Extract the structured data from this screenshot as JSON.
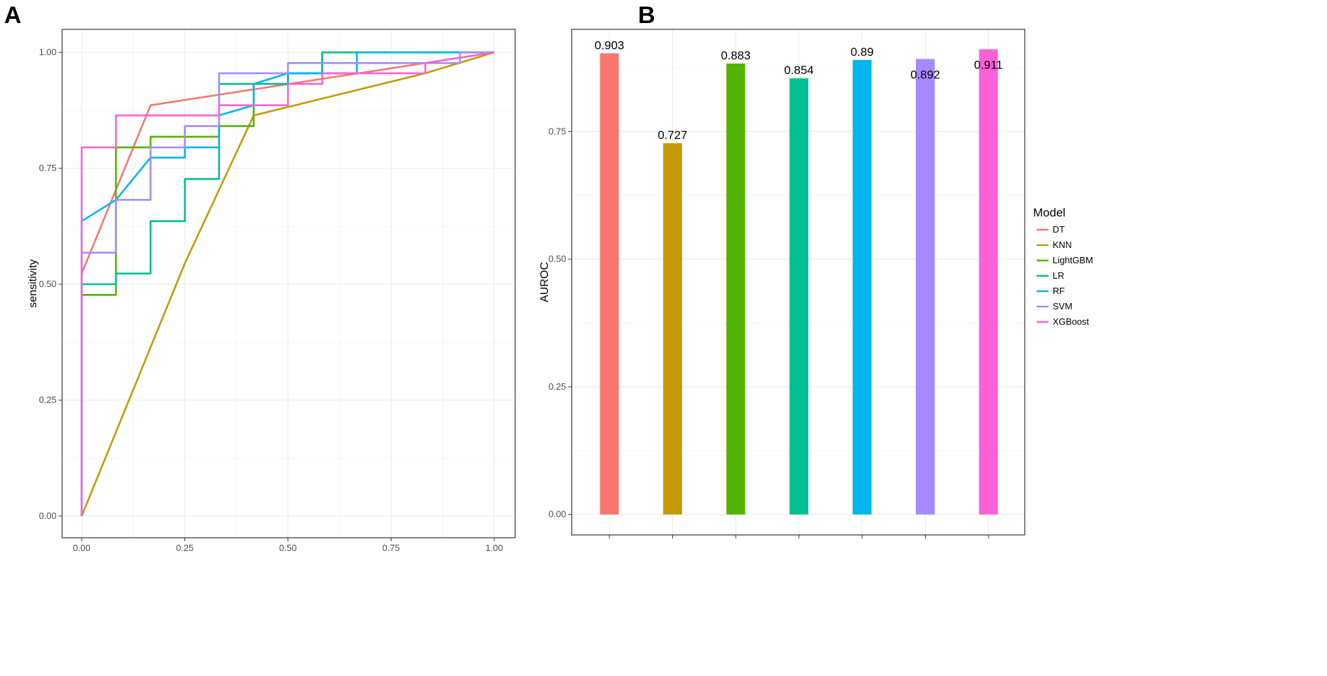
{
  "panel_a_label": "A",
  "panel_b_label": "B",
  "colors": {
    "DT": "#F8766D",
    "KNN": "#C49A00",
    "LightGBM": "#53B400",
    "LR": "#00C094",
    "RF": "#00B6EB",
    "SVM": "#A58AFF",
    "XGBoost": "#FB61D7"
  },
  "legend": {
    "title": "Model",
    "items": [
      "DT",
      "KNN",
      "LightGBM",
      "LR",
      "RF",
      "SVM",
      "XGBoost"
    ]
  },
  "chart_data": [
    {
      "type": "line",
      "title": "",
      "xlabel": "",
      "ylabel": "sensitivity",
      "xlim": [
        0,
        1
      ],
      "ylim": [
        0,
        1
      ],
      "x_ticks": [
        "0.00",
        "0.25",
        "0.50",
        "0.75",
        "1.00"
      ],
      "y_ticks": [
        "0.00",
        "0.25",
        "0.50",
        "0.75",
        "1.00"
      ],
      "series": [
        {
          "name": "DT",
          "x": [
            0,
            0,
            0.167,
            1
          ],
          "y": [
            0,
            0.523,
            0.886,
            1
          ]
        },
        {
          "name": "KNN",
          "x": [
            0,
            0.25,
            0.417,
            0.833,
            1
          ],
          "y": [
            0,
            0.545,
            0.864,
            0.955,
            1
          ]
        },
        {
          "name": "LightGBM",
          "x": [
            0,
            0,
            0.083,
            0.083,
            0.167,
            0.167,
            0.333,
            0.333,
            0.417,
            0.417,
            0.5,
            0.5,
            0.583,
            0.583,
            1
          ],
          "y": [
            0,
            0.477,
            0.477,
            0.795,
            0.795,
            0.818,
            0.818,
            0.841,
            0.841,
            0.932,
            0.932,
            0.955,
            0.955,
            1,
            1
          ]
        },
        {
          "name": "LR",
          "x": [
            0,
            0,
            0.083,
            0.083,
            0.167,
            0.167,
            0.25,
            0.25,
            0.333,
            0.333,
            0.417,
            0.417,
            0.5,
            0.5,
            0.583,
            0.583,
            1
          ],
          "y": [
            0,
            0.5,
            0.5,
            0.523,
            0.523,
            0.636,
            0.636,
            0.727,
            0.727,
            0.932,
            0.932,
            0.932,
            0.932,
            0.955,
            0.955,
            1,
            1
          ]
        },
        {
          "name": "RF",
          "x": [
            0,
            0,
            0.083,
            0.167,
            0.25,
            0.25,
            0.333,
            0.333,
            0.417,
            0.417,
            0.5,
            0.667,
            0.667,
            1
          ],
          "y": [
            0,
            0.636,
            0.682,
            0.773,
            0.773,
            0.795,
            0.795,
            0.864,
            0.886,
            0.932,
            0.955,
            0.955,
            1,
            1
          ]
        },
        {
          "name": "SVM",
          "x": [
            0,
            0,
            0.083,
            0.083,
            0.167,
            0.167,
            0.25,
            0.25,
            0.333,
            0.333,
            0.5,
            0.5,
            0.917,
            0.917,
            1
          ],
          "y": [
            0,
            0.568,
            0.568,
            0.682,
            0.682,
            0.795,
            0.795,
            0.841,
            0.841,
            0.955,
            0.955,
            0.977,
            0.977,
            1,
            1
          ]
        },
        {
          "name": "XGBoost",
          "x": [
            0,
            0,
            0.083,
            0.083,
            0.333,
            0.333,
            0.5,
            0.5,
            0.583,
            0.583,
            0.833,
            0.833,
            1
          ],
          "y": [
            0,
            0.795,
            0.795,
            0.864,
            0.864,
            0.886,
            0.886,
            0.932,
            0.932,
            0.955,
            0.955,
            0.977,
            1
          ]
        }
      ]
    },
    {
      "type": "bar",
      "title": "",
      "xlabel": "",
      "ylabel": "AUROC",
      "ylim": [
        -0.04,
        0.95
      ],
      "y_ticks": [
        "0.00",
        "0.25",
        "0.50",
        "0.75"
      ],
      "categories": [
        "DT",
        "KNN",
        "LightGBM",
        "LR",
        "RF",
        "SVM",
        "XGBoost"
      ],
      "values": [
        0.903,
        0.727,
        0.883,
        0.854,
        0.89,
        0.892,
        0.911
      ],
      "labels": [
        "0.903",
        "0.727",
        "0.883",
        "0.854",
        "0.89",
        "0.892",
        "0.911"
      ]
    }
  ]
}
